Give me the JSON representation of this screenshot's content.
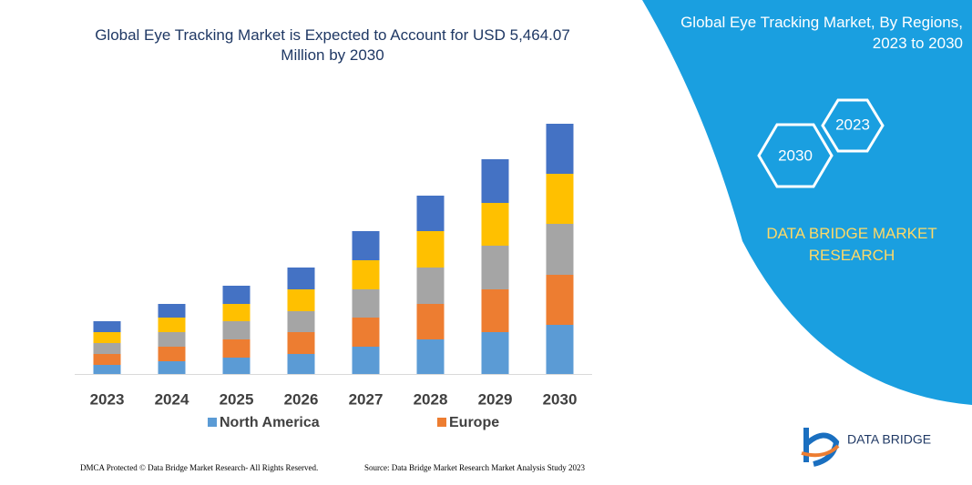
{
  "chart_data": {
    "type": "stacked_bar",
    "title": "Global Eye Tracking Market is Expected to Account for USD 5,464.07 Million by 2030",
    "categories": [
      "2023",
      "2024",
      "2025",
      "2026",
      "2027",
      "2028",
      "2029",
      "2030"
    ],
    "series": [
      {
        "name": "North America",
        "color": "#5b9bd5",
        "values": [
          10,
          14,
          18,
          22,
          30,
          38,
          46,
          54
        ]
      },
      {
        "name": "Europe",
        "color": "#ed7d31",
        "values": [
          12,
          16,
          20,
          24,
          32,
          39,
          47,
          55
        ]
      },
      {
        "color": "#a5a5a5",
        "values": [
          12,
          16,
          20,
          23,
          31,
          40,
          48,
          56
        ]
      },
      {
        "color": "#ffc000",
        "values": [
          12,
          16,
          19,
          24,
          32,
          40,
          47,
          55
        ]
      },
      {
        "color": "#4472c4",
        "values": [
          12,
          15,
          20,
          24,
          32,
          39,
          48,
          55
        ]
      }
    ],
    "ylim": [
      0,
      280
    ]
  },
  "panel": {
    "title": "Global Eye Tracking Market, By Regions, 2023 to 2030",
    "hex_small": "2023",
    "hex_large": "2030",
    "brand": "DATA BRIDGE MARKET RESEARCH",
    "logo": "DATA BRIDGE"
  },
  "footer": {
    "left": "DMCA Protected © Data Bridge Market Research- All Rights Reserved.",
    "right": "Source: Data Bridge Market Research Market Analysis Study 2023"
  }
}
